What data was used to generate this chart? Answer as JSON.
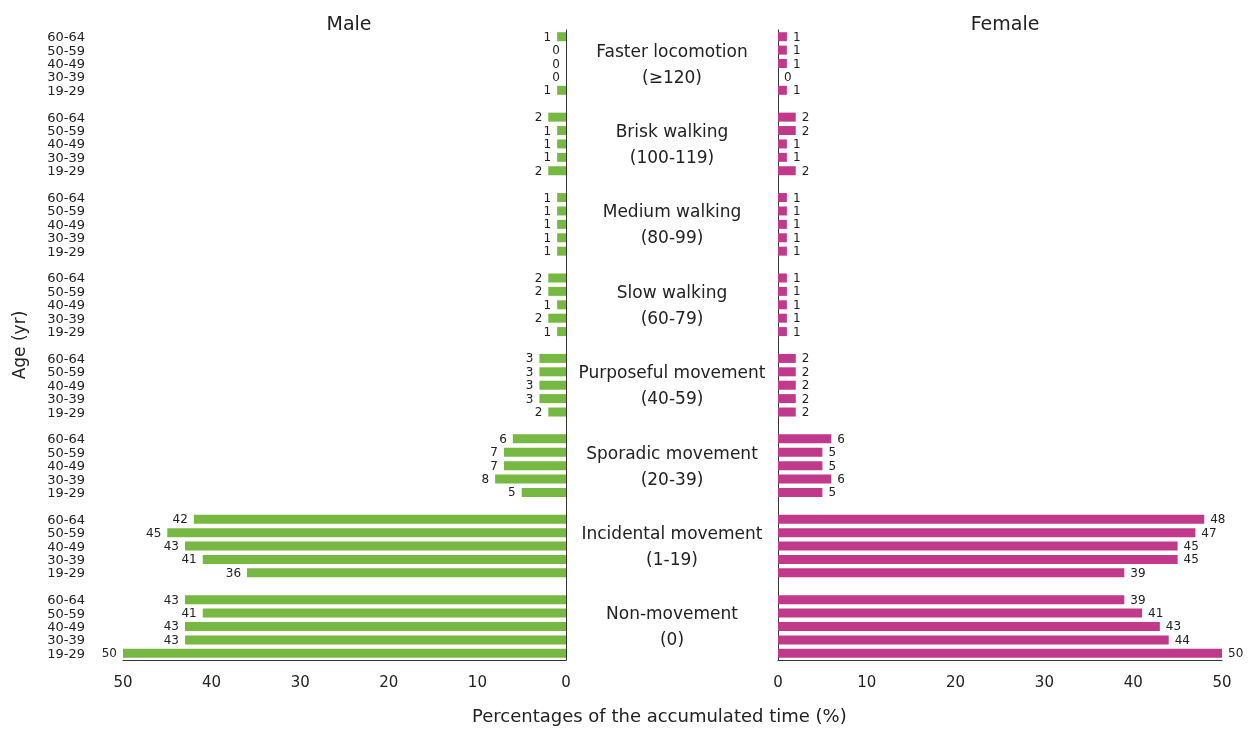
{
  "chart_data": [
    {
      "type": "bar",
      "orientation": "horizontal",
      "title": "Male",
      "xlabel": "Percentages of the accumulated time (%)",
      "ylabel": "Age (yr)",
      "categories": [
        "60-64",
        "50-59",
        "40-49",
        "30-39",
        "19-29",
        null,
        "60-64",
        "50-59",
        "40-49",
        "30-39",
        "19-29",
        null,
        "60-64",
        "50-59",
        "40-49",
        "30-39",
        "19-29",
        null,
        "60-64",
        "50-59",
        "40-49",
        "30-39",
        "19-29",
        null,
        "60-64",
        "50-59",
        "40-49",
        "30-39",
        "19-29",
        null,
        "60-64",
        "50-59",
        "40-49",
        "30-39",
        "19-29",
        null,
        "60-64",
        "50-59",
        "40-49",
        "30-39",
        "19-29",
        null,
        "60-64",
        "50-59",
        "40-49",
        "30-39",
        "19-29"
      ],
      "values": [
        1,
        0,
        0,
        0,
        1,
        null,
        2,
        1,
        1,
        1,
        2,
        null,
        1,
        1,
        1,
        1,
        1,
        null,
        2,
        2,
        1,
        2,
        1,
        null,
        3,
        3,
        3,
        3,
        2,
        null,
        6,
        7,
        7,
        8,
        5,
        null,
        42,
        45,
        43,
        41,
        36,
        null,
        43,
        41,
        43,
        43,
        50
      ],
      "color": "#77b843",
      "xlim": [
        50,
        0
      ],
      "xticks": [
        50,
        40,
        30,
        20,
        10,
        0
      ],
      "grid": false,
      "data_labels": true,
      "annotations": [
        "Faster locomotion (≥120)",
        "Brisk walking (100-119)",
        "Medium walking (80-99)",
        "Slow walking (60-79)",
        "Purposeful movement (40-59)",
        "Sporadic movement (20-39)",
        "Incidental movement (1-19)",
        "Non-movement (0)"
      ]
    },
    {
      "type": "bar",
      "orientation": "horizontal",
      "title": "Female",
      "tick_labels": "x",
      "categories": [
        null,
        null,
        null,
        null,
        null,
        null,
        null,
        null,
        null,
        null,
        null,
        null,
        null,
        null,
        null,
        null,
        null,
        null,
        null,
        null,
        null,
        null,
        null,
        null,
        null,
        null,
        null,
        null,
        null,
        null,
        null,
        null,
        null,
        null,
        null,
        null,
        null,
        null,
        null,
        null,
        null,
        null,
        null,
        null,
        null,
        null,
        null
      ],
      "values": [
        1,
        1,
        1,
        0,
        1,
        null,
        2,
        2,
        1,
        1,
        2,
        null,
        1,
        1,
        1,
        1,
        1,
        null,
        1,
        1,
        1,
        1,
        1,
        null,
        2,
        2,
        2,
        2,
        2,
        null,
        6,
        5,
        5,
        6,
        5,
        null,
        48,
        47,
        45,
        45,
        39,
        null,
        39,
        41,
        43,
        44,
        50
      ],
      "color": "#c0398a",
      "xlim": [
        0,
        50
      ],
      "xticks": [
        0,
        10,
        20,
        30,
        40,
        50
      ],
      "grid": false,
      "data_labels": true
    }
  ]
}
